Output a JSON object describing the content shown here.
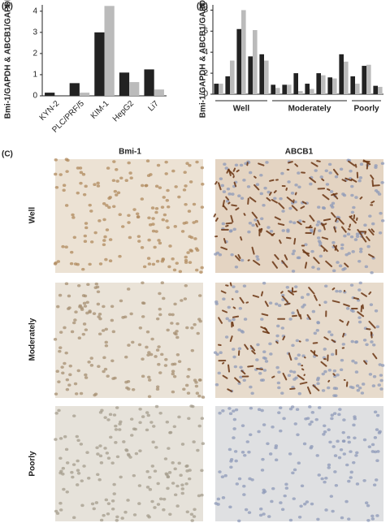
{
  "chart_data": [
    {
      "type": "bar",
      "panel": "(A)",
      "y_label": "Bmi-1/GAPDH & ABCB1/GAPDH",
      "categories": [
        "KYN-2",
        "PLC/PRF/5",
        "KIM-1",
        "HepG2",
        "Li7"
      ],
      "series": [
        {
          "color": "#222222",
          "values": [
            0.15,
            0.6,
            3.0,
            1.1,
            1.25
          ]
        },
        {
          "color": "#bbbbbb",
          "values": [
            0,
            0.15,
            4.25,
            0.65,
            0.3
          ]
        }
      ],
      "ylim": [
        0,
        4.3
      ],
      "yticks": [
        0,
        1,
        2,
        3,
        4
      ]
    },
    {
      "type": "bar",
      "panel": "(B)",
      "y_label": "Bmi-1/GAPDH & ABCB1/GAPDH",
      "categories": [
        null,
        null,
        null,
        null,
        null,
        null,
        null,
        null,
        null,
        null,
        null,
        null,
        null,
        null,
        null
      ],
      "series": [
        {
          "color": "#222222",
          "values": [
            1.0,
            1.7,
            6.2,
            3.6,
            3.8,
            0.9,
            0.9,
            2.0,
            1.0,
            2.0,
            1.6,
            3.8,
            1.7,
            2.7,
            0.8
          ]
        },
        {
          "color": "#bbbbbb",
          "values": [
            1.0,
            3.2,
            8.0,
            6.1,
            3.2,
            0.6,
            0.9,
            0.3,
            0.5,
            1.8,
            1.5,
            3.1,
            1.0,
            2.8,
            0.7
          ]
        }
      ],
      "groups": [
        "Well",
        "Moderately",
        "Poorly"
      ],
      "ylim": [
        0,
        8.5
      ],
      "yticks": [
        0,
        2,
        4,
        6,
        8
      ]
    }
  ],
  "panel_c": {
    "panel": "(C)",
    "columns": [
      "Bmi-1",
      "ABCB1"
    ],
    "rows": [
      "Well",
      "Moderately",
      "Poorly"
    ]
  }
}
